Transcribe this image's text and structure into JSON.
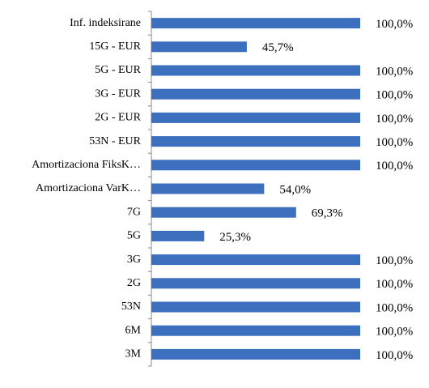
{
  "chart_data": {
    "type": "barh",
    "categories": [
      "Inf. indeksirane",
      "15G - EUR",
      "5G - EUR",
      "3G - EUR",
      "2G - EUR",
      "53N - EUR",
      "Amortizaciona FiksK…",
      "Amortizaciona VarK…",
      "7G",
      "5G",
      "3G",
      "2G",
      "53N",
      "6M",
      "3M"
    ],
    "values": [
      100,
      45.7,
      100,
      100,
      100,
      100,
      100,
      54.0,
      69.3,
      25.3,
      100,
      100,
      100,
      100,
      100
    ],
    "value_labels": [
      "100,0%",
      "45,7%",
      "100,0%",
      "100,0%",
      "100,0%",
      "100,0%",
      "100,0%",
      "54,0%",
      "69,3%",
      "25,3%",
      "100,0%",
      "100,0%",
      "100,0%",
      "100,0%",
      "100,0%"
    ],
    "color": "#3d6fbf",
    "xlim": [
      0,
      100
    ]
  }
}
